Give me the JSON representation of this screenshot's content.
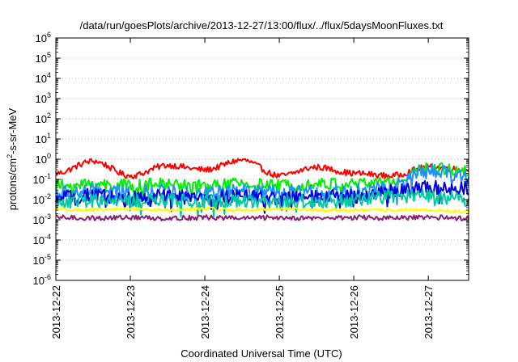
{
  "chart_data": {
    "type": "line",
    "title": "/data/run/goesPlots/archive/2013-12-27/13:00/flux/../flux/5daysMoonFluxes.txt",
    "xlabel": "Coordinated Universal Time (UTC)",
    "ylabel": {
      "base": "protons/cm",
      "sup": "2",
      "rest": "-s-sr-MeV"
    },
    "y_scale": "log",
    "ylim": [
      1e-06,
      1000000.0
    ],
    "y_ticks": [
      {
        "base": "10",
        "exp": "-6"
      },
      {
        "base": "10",
        "exp": "-5"
      },
      {
        "base": "10",
        "exp": "-4"
      },
      {
        "base": "10",
        "exp": "-3"
      },
      {
        "base": "10",
        "exp": "-2"
      },
      {
        "base": "10",
        "exp": "-1"
      },
      {
        "base": "10",
        "exp": "0"
      },
      {
        "base": "10",
        "exp": "1"
      },
      {
        "base": "10",
        "exp": "2"
      },
      {
        "base": "10",
        "exp": "3"
      },
      {
        "base": "10",
        "exp": "4"
      },
      {
        "base": "10",
        "exp": "5"
      },
      {
        "base": "10",
        "exp": "6"
      }
    ],
    "x_ticks": [
      "2013-12-22",
      "2013-12-23",
      "2013-12-24",
      "2013-12-25",
      "2013-12-26",
      "2013-12-27"
    ],
    "xlim": [
      "2013-12-22 00:00",
      "2013-12-27 13:00"
    ],
    "grid": "y-dotted",
    "legend": "none",
    "series": [
      {
        "color": "#ff0000",
        "x": [
          "2013-12-22 00:00",
          "2013-12-22 12:00",
          "2013-12-23 00:00",
          "2013-12-23 12:00",
          "2013-12-24 00:00",
          "2013-12-24 12:00",
          "2013-12-25 00:00",
          "2013-12-25 12:00",
          "2013-12-26 00:00",
          "2013-12-26 12:00",
          "2013-12-27 00:00",
          "2013-12-27 13:00"
        ],
        "values": [
          0.2,
          0.8,
          0.15,
          0.5,
          0.3,
          0.9,
          0.15,
          0.4,
          0.2,
          0.15,
          0.4,
          0.3
        ],
        "noise": 0.15
      },
      {
        "color": "#00ee00",
        "x": [
          "2013-12-22 00:00",
          "2013-12-22 12:00",
          "2013-12-23 00:00",
          "2013-12-23 12:00",
          "2013-12-24 00:00",
          "2013-12-24 12:00",
          "2013-12-25 00:00",
          "2013-12-25 12:00",
          "2013-12-26 00:00",
          "2013-12-26 12:00",
          "2013-12-27 00:00",
          "2013-12-27 13:00"
        ],
        "values": [
          0.05,
          0.06,
          0.05,
          0.06,
          0.05,
          0.06,
          0.05,
          0.06,
          0.06,
          0.08,
          0.35,
          0.3
        ],
        "noise": 0.3
      },
      {
        "color": "#1e90ff",
        "x": [
          "2013-12-22 00:00",
          "2013-12-22 12:00",
          "2013-12-23 00:00",
          "2013-12-23 12:00",
          "2013-12-24 00:00",
          "2013-12-24 12:00",
          "2013-12-25 00:00",
          "2013-12-25 12:00",
          "2013-12-26 00:00",
          "2013-12-26 12:00",
          "2013-12-27 00:00",
          "2013-12-27 13:00"
        ],
        "values": [
          0.02,
          0.025,
          0.02,
          0.025,
          0.02,
          0.025,
          0.02,
          0.02,
          0.025,
          0.04,
          0.25,
          0.12
        ],
        "noise": 0.4
      },
      {
        "color": "#0000e0",
        "x": [
          "2013-12-22 00:00",
          "2013-12-22 12:00",
          "2013-12-23 00:00",
          "2013-12-23 12:00",
          "2013-12-24 00:00",
          "2013-12-24 12:00",
          "2013-12-25 00:00",
          "2013-12-25 12:00",
          "2013-12-26 00:00",
          "2013-12-26 12:00",
          "2013-12-27 00:00",
          "2013-12-27 13:00"
        ],
        "values": [
          0.012,
          0.015,
          0.012,
          0.014,
          0.012,
          0.015,
          0.012,
          0.013,
          0.015,
          0.025,
          0.04,
          0.035
        ],
        "noise": 0.35
      },
      {
        "color": "#00c8a0",
        "x": [
          "2013-12-22 00:00",
          "2013-12-22 12:00",
          "2013-12-23 00:00",
          "2013-12-23 12:00",
          "2013-12-24 00:00",
          "2013-12-24 12:00",
          "2013-12-25 00:00",
          "2013-12-25 12:00",
          "2013-12-26 00:00",
          "2013-12-26 12:00",
          "2013-12-27 00:00",
          "2013-12-27 13:00"
        ],
        "values": [
          0.008,
          0.009,
          0.008,
          0.009,
          0.008,
          0.009,
          0.008,
          0.009,
          0.009,
          0.015,
          0.015,
          0.01
        ],
        "noise": 0.35
      },
      {
        "color": "#ffff00",
        "x": [
          "2013-12-22 00:00",
          "2013-12-22 12:00",
          "2013-12-23 00:00",
          "2013-12-23 12:00",
          "2013-12-24 00:00",
          "2013-12-24 12:00",
          "2013-12-25 00:00",
          "2013-12-25 12:00",
          "2013-12-26 00:00",
          "2013-12-26 12:00",
          "2013-12-27 00:00",
          "2013-12-27 13:00"
        ],
        "values": [
          0.0035,
          0.003,
          0.0035,
          0.003,
          0.0035,
          0.003,
          0.0035,
          0.003,
          0.003,
          0.003,
          0.003,
          0.0025
        ],
        "noise": 0.08
      },
      {
        "color": "#8b2070",
        "x": [
          "2013-12-22 00:00",
          "2013-12-22 12:00",
          "2013-12-23 00:00",
          "2013-12-23 12:00",
          "2013-12-24 00:00",
          "2013-12-24 12:00",
          "2013-12-25 00:00",
          "2013-12-25 12:00",
          "2013-12-26 00:00",
          "2013-12-26 12:00",
          "2013-12-27 00:00",
          "2013-12-27 13:00"
        ],
        "values": [
          0.0013,
          0.0012,
          0.0013,
          0.0012,
          0.0013,
          0.0012,
          0.0013,
          0.0012,
          0.0013,
          0.0012,
          0.0013,
          0.0012
        ],
        "noise": 0.12
      }
    ]
  }
}
